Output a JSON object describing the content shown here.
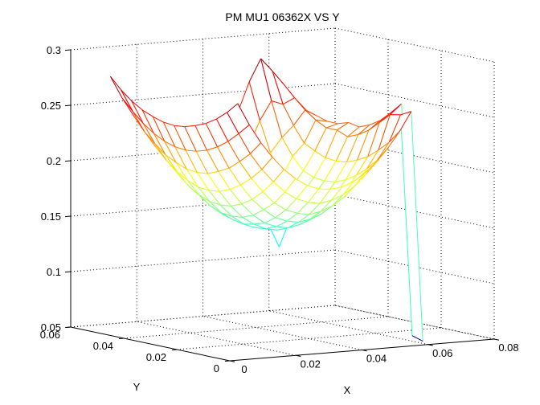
{
  "title": "PM MU1 06362X VS Y",
  "chart_data": {
    "type": "surface",
    "subtype": "3d-wireframe-mesh",
    "title": "PM MU1 06362X VS Y",
    "xlabel": "X",
    "ylabel": "Y",
    "zlabel": "",
    "xlim": [
      0,
      0.08
    ],
    "ylim": [
      0,
      0.06
    ],
    "zlim": [
      0.05,
      0.3
    ],
    "xticks": {
      "values": [
        0,
        0.02,
        0.04,
        0.06,
        0.08
      ],
      "labels": [
        "0",
        "0.02",
        "0.04",
        "0.06",
        "0.08"
      ]
    },
    "yticks": {
      "values": [
        0,
        0.02,
        0.04,
        0.06
      ],
      "labels": [
        "0",
        "0.02",
        "0.04",
        "0.06"
      ]
    },
    "zticks": {
      "values": [
        0.05,
        0.1,
        0.15,
        0.2,
        0.25,
        0.3
      ],
      "labels": [
        "0.05",
        "0.1",
        "0.15",
        "0.2",
        "0.25",
        "0.3"
      ]
    },
    "grid": true,
    "legend": false,
    "colormap": "jet",
    "color_range": [
      0.052,
      0.285
    ],
    "view": {
      "azimuth": -37.5,
      "elevation": 30
    },
    "line_color_meaning": "edge color mapped to z height (blue=low, green~0.15, yellow~0.2, red>=0.25)",
    "x": [
      0.004,
      0.0075,
      0.011,
      0.0145,
      0.018,
      0.0215,
      0.025,
      0.0285,
      0.032,
      0.0355,
      0.039,
      0.0425,
      0.046,
      0.0495,
      0.053,
      0.0565,
      0.06
    ],
    "y": [
      0.002,
      0.006,
      0.01,
      0.014,
      0.018,
      0.022,
      0.026,
      0.03,
      0.034,
      0.038,
      0.042,
      0.046,
      0.05
    ],
    "z": [
      [
        0.28,
        0.26,
        0.243,
        0.229,
        0.217,
        0.208,
        0.201,
        0.197,
        0.196,
        0.197,
        0.201,
        0.208,
        0.217,
        0.229,
        0.243,
        0.26,
        0.052
      ],
      [
        0.27,
        0.25,
        0.231,
        0.216,
        0.204,
        0.194,
        0.187,
        0.183,
        0.181,
        0.183,
        0.187,
        0.194,
        0.204,
        0.216,
        0.231,
        0.255,
        0.055
      ],
      [
        0.262,
        0.241,
        0.222,
        0.206,
        0.193,
        0.182,
        0.175,
        0.171,
        0.169,
        0.171,
        0.175,
        0.182,
        0.193,
        0.206,
        0.222,
        0.253,
        0.262
      ],
      [
        0.256,
        0.234,
        0.214,
        0.198,
        0.184,
        0.174,
        0.166,
        0.162,
        0.16,
        0.162,
        0.166,
        0.174,
        0.184,
        0.198,
        0.214,
        0.244,
        0.252
      ],
      [
        0.252,
        0.229,
        0.209,
        0.192,
        0.178,
        0.167,
        0.159,
        0.155,
        0.153,
        0.155,
        0.159,
        0.167,
        0.178,
        0.192,
        0.209,
        0.235,
        0.243
      ],
      [
        0.249,
        0.226,
        0.205,
        0.188,
        0.174,
        0.163,
        0.156,
        0.151,
        0.149,
        0.151,
        0.156,
        0.163,
        0.174,
        0.188,
        0.205,
        0.229,
        0.237
      ],
      [
        0.248,
        0.225,
        0.204,
        0.187,
        0.173,
        0.162,
        0.154,
        0.15,
        0.148,
        0.15,
        0.154,
        0.162,
        0.173,
        0.187,
        0.204,
        0.225,
        0.233
      ],
      [
        0.249,
        0.226,
        0.205,
        0.188,
        0.174,
        0.163,
        0.156,
        0.151,
        0.149,
        0.151,
        0.128,
        0.163,
        0.174,
        0.188,
        0.205,
        0.229,
        0.235
      ],
      [
        0.252,
        0.229,
        0.209,
        0.192,
        0.178,
        0.167,
        0.159,
        0.245,
        0.153,
        0.155,
        0.159,
        0.167,
        0.178,
        0.192,
        0.209,
        0.229,
        0.232
      ],
      [
        0.256,
        0.234,
        0.214,
        0.198,
        0.184,
        0.174,
        0.166,
        0.162,
        0.16,
        0.162,
        0.166,
        0.174,
        0.184,
        0.203,
        0.214,
        0.234,
        0.232
      ],
      [
        0.262,
        0.241,
        0.222,
        0.206,
        0.193,
        0.182,
        0.175,
        0.171,
        0.169,
        0.171,
        0.175,
        0.19,
        0.205,
        0.218,
        0.228,
        0.241,
        0.235
      ],
      [
        0.27,
        0.25,
        0.231,
        0.216,
        0.204,
        0.194,
        0.187,
        0.183,
        0.181,
        0.183,
        0.195,
        0.209,
        0.232,
        0.249,
        0.245,
        0.25,
        0.238
      ],
      [
        0.28,
        0.26,
        0.243,
        0.229,
        0.217,
        0.208,
        0.201,
        0.197,
        0.196,
        0.202,
        0.213,
        0.238,
        0.265,
        0.285,
        0.273,
        0.26,
        0.24
      ]
    ]
  }
}
